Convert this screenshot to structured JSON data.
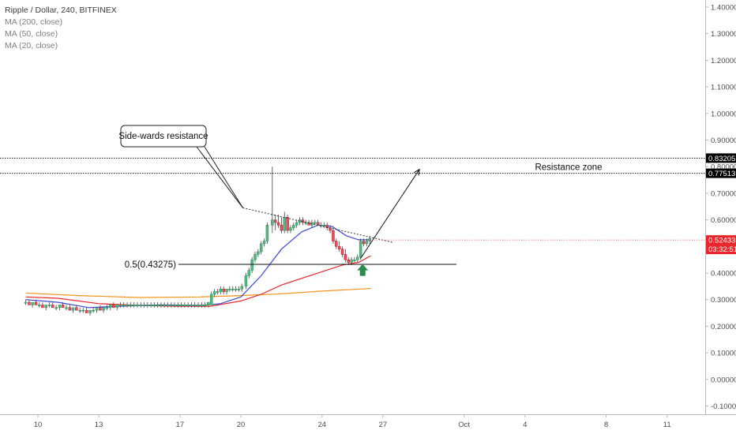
{
  "legend": {
    "symbol": "Ripple / Dollar, 240, BITFINEX",
    "ma200": "MA (200, close)",
    "ma50": "MA (50, close)",
    "ma20": "MA (20, close)"
  },
  "chart_data": {
    "type": "candlestick",
    "title": "Ripple / Dollar, 240, BITFINEX",
    "y_axis": {
      "position": "right",
      "range": [
        -0.12,
        1.42
      ],
      "ticks": [
        1.4,
        1.3,
        1.2,
        1.1,
        1.0,
        0.9,
        0.8,
        0.7,
        0.6,
        0.5,
        0.4,
        0.3,
        0.2,
        0.1,
        0.0,
        -0.1
      ],
      "tick_labels": [
        "1.40000",
        "1.30000",
        "1.20000",
        "1.10000",
        "1.00000",
        "0.90000",
        "0.80000",
        "0.70000",
        "0.60000",
        "0.50000",
        "0.40000",
        "0.30000",
        "0.20000",
        "0.10000",
        "0.00000",
        "-0.10000"
      ]
    },
    "x_axis": {
      "range_days": [
        9.4,
        42.5
      ],
      "ticks": [
        {
          "day": 10,
          "label": "10"
        },
        {
          "day": 13,
          "label": "13"
        },
        {
          "day": 17,
          "label": "17"
        },
        {
          "day": 20,
          "label": "20"
        },
        {
          "day": 24,
          "label": "24"
        },
        {
          "day": 27,
          "label": "27"
        },
        {
          "day": 31,
          "label": "Oct"
        },
        {
          "day": 34,
          "label": "4"
        },
        {
          "day": 38,
          "label": "8"
        },
        {
          "day": 41,
          "label": "11"
        }
      ]
    },
    "candles": [
      [
        9.4,
        0.29,
        0.3,
        0.28,
        0.29
      ],
      [
        9.57,
        0.29,
        0.3,
        0.28,
        0.28
      ],
      [
        9.73,
        0.28,
        0.29,
        0.27,
        0.29
      ],
      [
        9.9,
        0.29,
        0.3,
        0.28,
        0.28
      ],
      [
        10.07,
        0.28,
        0.29,
        0.27,
        0.28
      ],
      [
        10.23,
        0.28,
        0.29,
        0.27,
        0.27
      ],
      [
        10.4,
        0.27,
        0.28,
        0.26,
        0.28
      ],
      [
        10.57,
        0.28,
        0.29,
        0.27,
        0.28
      ],
      [
        10.73,
        0.28,
        0.29,
        0.27,
        0.27
      ],
      [
        10.9,
        0.27,
        0.28,
        0.26,
        0.27
      ],
      [
        11.07,
        0.27,
        0.28,
        0.26,
        0.28
      ],
      [
        11.23,
        0.28,
        0.29,
        0.27,
        0.27
      ],
      [
        11.4,
        0.27,
        0.28,
        0.26,
        0.27
      ],
      [
        11.57,
        0.27,
        0.28,
        0.26,
        0.26
      ],
      [
        11.73,
        0.26,
        0.27,
        0.25,
        0.27
      ],
      [
        11.9,
        0.27,
        0.28,
        0.26,
        0.26
      ],
      [
        12.07,
        0.26,
        0.27,
        0.25,
        0.26
      ],
      [
        12.23,
        0.26,
        0.27,
        0.25,
        0.26
      ],
      [
        12.4,
        0.26,
        0.27,
        0.25,
        0.25
      ],
      [
        12.57,
        0.25,
        0.26,
        0.24,
        0.26
      ],
      [
        12.73,
        0.26,
        0.27,
        0.25,
        0.26
      ],
      [
        12.9,
        0.26,
        0.27,
        0.25,
        0.27
      ],
      [
        13.07,
        0.27,
        0.28,
        0.26,
        0.26
      ],
      [
        13.23,
        0.26,
        0.27,
        0.25,
        0.27
      ],
      [
        13.4,
        0.27,
        0.28,
        0.26,
        0.27
      ],
      [
        13.57,
        0.27,
        0.28,
        0.26,
        0.28
      ],
      [
        13.73,
        0.28,
        0.29,
        0.27,
        0.27
      ],
      [
        13.9,
        0.27,
        0.28,
        0.26,
        0.28
      ],
      [
        14.07,
        0.28,
        0.29,
        0.27,
        0.28
      ],
      [
        14.23,
        0.28,
        0.29,
        0.27,
        0.28
      ],
      [
        14.4,
        0.28,
        0.29,
        0.27,
        0.28
      ],
      [
        14.57,
        0.28,
        0.29,
        0.27,
        0.28
      ],
      [
        14.73,
        0.28,
        0.29,
        0.27,
        0.28
      ],
      [
        14.9,
        0.28,
        0.29,
        0.27,
        0.28
      ],
      [
        15.07,
        0.28,
        0.29,
        0.27,
        0.28
      ],
      [
        15.23,
        0.28,
        0.29,
        0.27,
        0.28
      ],
      [
        15.4,
        0.28,
        0.29,
        0.27,
        0.28
      ],
      [
        15.57,
        0.28,
        0.29,
        0.27,
        0.28
      ],
      [
        15.73,
        0.28,
        0.29,
        0.27,
        0.28
      ],
      [
        15.9,
        0.28,
        0.29,
        0.27,
        0.28
      ],
      [
        16.07,
        0.28,
        0.29,
        0.27,
        0.28
      ],
      [
        16.23,
        0.28,
        0.29,
        0.27,
        0.28
      ],
      [
        16.4,
        0.28,
        0.29,
        0.27,
        0.28
      ],
      [
        16.57,
        0.28,
        0.29,
        0.27,
        0.28
      ],
      [
        16.73,
        0.28,
        0.29,
        0.27,
        0.28
      ],
      [
        16.9,
        0.28,
        0.29,
        0.27,
        0.28
      ],
      [
        17.07,
        0.28,
        0.29,
        0.27,
        0.28
      ],
      [
        17.23,
        0.28,
        0.29,
        0.27,
        0.28
      ],
      [
        17.4,
        0.28,
        0.29,
        0.27,
        0.28
      ],
      [
        17.57,
        0.28,
        0.29,
        0.27,
        0.28
      ],
      [
        17.73,
        0.28,
        0.29,
        0.27,
        0.28
      ],
      [
        17.9,
        0.28,
        0.29,
        0.27,
        0.28
      ],
      [
        18.07,
        0.28,
        0.29,
        0.27,
        0.28
      ],
      [
        18.23,
        0.28,
        0.29,
        0.27,
        0.28
      ],
      [
        18.4,
        0.28,
        0.29,
        0.27,
        0.29
      ],
      [
        18.55,
        0.28,
        0.33,
        0.28,
        0.32
      ],
      [
        18.7,
        0.32,
        0.34,
        0.31,
        0.33
      ],
      [
        18.85,
        0.33,
        0.34,
        0.32,
        0.33
      ],
      [
        19.0,
        0.33,
        0.35,
        0.32,
        0.34
      ],
      [
        19.15,
        0.34,
        0.35,
        0.32,
        0.33
      ],
      [
        19.3,
        0.33,
        0.34,
        0.32,
        0.34
      ],
      [
        19.45,
        0.34,
        0.35,
        0.33,
        0.34
      ],
      [
        19.6,
        0.34,
        0.35,
        0.33,
        0.34
      ],
      [
        19.75,
        0.34,
        0.35,
        0.33,
        0.34
      ],
      [
        19.9,
        0.34,
        0.35,
        0.33,
        0.34
      ],
      [
        20.05,
        0.34,
        0.36,
        0.33,
        0.35
      ],
      [
        20.25,
        0.35,
        0.4,
        0.34,
        0.39
      ],
      [
        20.4,
        0.39,
        0.42,
        0.38,
        0.41
      ],
      [
        20.55,
        0.41,
        0.46,
        0.4,
        0.45
      ],
      [
        20.7,
        0.45,
        0.48,
        0.44,
        0.47
      ],
      [
        20.85,
        0.47,
        0.49,
        0.46,
        0.48
      ],
      [
        21.0,
        0.48,
        0.52,
        0.47,
        0.51
      ],
      [
        21.15,
        0.51,
        0.53,
        0.5,
        0.52
      ],
      [
        21.3,
        0.52,
        0.59,
        0.51,
        0.58
      ],
      [
        21.55,
        0.58,
        0.8,
        0.55,
        0.6
      ],
      [
        21.7,
        0.6,
        0.62,
        0.56,
        0.59
      ],
      [
        21.85,
        0.59,
        0.62,
        0.57,
        0.58
      ],
      [
        22.0,
        0.58,
        0.61,
        0.55,
        0.56
      ],
      [
        22.15,
        0.56,
        0.63,
        0.55,
        0.61
      ],
      [
        22.3,
        0.61,
        0.62,
        0.55,
        0.56
      ],
      [
        22.45,
        0.56,
        0.58,
        0.55,
        0.57
      ],
      [
        22.6,
        0.57,
        0.59,
        0.56,
        0.58
      ],
      [
        22.75,
        0.58,
        0.6,
        0.57,
        0.59
      ],
      [
        22.9,
        0.59,
        0.61,
        0.58,
        0.6
      ],
      [
        23.05,
        0.6,
        0.61,
        0.58,
        0.59
      ],
      [
        23.2,
        0.59,
        0.6,
        0.58,
        0.59
      ],
      [
        23.35,
        0.59,
        0.6,
        0.58,
        0.58
      ],
      [
        23.5,
        0.58,
        0.6,
        0.57,
        0.59
      ],
      [
        23.65,
        0.59,
        0.6,
        0.58,
        0.59
      ],
      [
        23.8,
        0.59,
        0.6,
        0.58,
        0.58
      ],
      [
        23.95,
        0.58,
        0.59,
        0.57,
        0.58
      ],
      [
        24.1,
        0.58,
        0.59,
        0.57,
        0.58
      ],
      [
        24.25,
        0.58,
        0.59,
        0.56,
        0.57
      ],
      [
        24.4,
        0.57,
        0.58,
        0.55,
        0.56
      ],
      [
        24.55,
        0.56,
        0.57,
        0.51,
        0.52
      ],
      [
        24.7,
        0.52,
        0.53,
        0.49,
        0.5
      ],
      [
        24.85,
        0.5,
        0.52,
        0.48,
        0.49
      ],
      [
        25.0,
        0.49,
        0.5,
        0.46,
        0.47
      ],
      [
        25.15,
        0.47,
        0.49,
        0.44,
        0.45
      ],
      [
        25.3,
        0.45,
        0.46,
        0.43,
        0.44
      ],
      [
        25.45,
        0.44,
        0.46,
        0.43,
        0.45
      ],
      [
        25.6,
        0.45,
        0.46,
        0.44,
        0.45
      ],
      [
        25.75,
        0.45,
        0.47,
        0.44,
        0.46
      ],
      [
        25.9,
        0.46,
        0.53,
        0.45,
        0.52
      ],
      [
        26.05,
        0.52,
        0.53,
        0.5,
        0.51
      ],
      [
        26.2,
        0.51,
        0.53,
        0.5,
        0.52
      ],
      [
        26.35,
        0.52,
        0.54,
        0.51,
        0.53
      ]
    ],
    "moving_averages": [
      {
        "name": "MA (200, close)",
        "color": "#f7931a",
        "points": [
          [
            9.4,
            0.325
          ],
          [
            12,
            0.315
          ],
          [
            15,
            0.308
          ],
          [
            18,
            0.31
          ],
          [
            20,
            0.315
          ],
          [
            22,
            0.322
          ],
          [
            24,
            0.332
          ],
          [
            26,
            0.34
          ],
          [
            26.4,
            0.342
          ]
        ]
      },
      {
        "name": "MA (50, close)",
        "color": "#e8262b",
        "points": [
          [
            9.4,
            0.31
          ],
          [
            11,
            0.305
          ],
          [
            13,
            0.285
          ],
          [
            15,
            0.278
          ],
          [
            17,
            0.275
          ],
          [
            18.5,
            0.275
          ],
          [
            20,
            0.295
          ],
          [
            21,
            0.32
          ],
          [
            22,
            0.355
          ],
          [
            23,
            0.38
          ],
          [
            24,
            0.405
          ],
          [
            25,
            0.43
          ],
          [
            25.8,
            0.44
          ],
          [
            26.4,
            0.465
          ]
        ]
      },
      {
        "name": "MA (20, close)",
        "color": "#3b4ad6",
        "points": [
          [
            9.4,
            0.3
          ],
          [
            11,
            0.29
          ],
          [
            12.5,
            0.27
          ],
          [
            14,
            0.275
          ],
          [
            16,
            0.28
          ],
          [
            18,
            0.278
          ],
          [
            19,
            0.285
          ],
          [
            20,
            0.31
          ],
          [
            21,
            0.39
          ],
          [
            22,
            0.49
          ],
          [
            23,
            0.555
          ],
          [
            23.8,
            0.58
          ],
          [
            24.5,
            0.575
          ],
          [
            25.2,
            0.54
          ],
          [
            25.8,
            0.525
          ],
          [
            26.4,
            0.525
          ]
        ]
      }
    ],
    "levels": [
      {
        "value": 0.83205,
        "label": "0.83205",
        "style": "dotted"
      },
      {
        "value": 0.77513,
        "label": "0.77513",
        "style": "dotted"
      }
    ],
    "current_price": {
      "value": 0.52433,
      "label": "0.52433",
      "countdown": "03:32:51",
      "color": "#e8262b"
    },
    "annotations": {
      "fib_label": "0.5(0.43275)",
      "fib_value": 0.43275,
      "resistance_callout": "Side-wards resistance",
      "resistance_zone_label": "Resistance zone",
      "trendline": [
        [
          20.1,
          0.645
        ],
        [
          27.5,
          0.515
        ]
      ],
      "projection_arrow": [
        [
          25.9,
          0.455
        ],
        [
          28.8,
          0.79
        ]
      ],
      "up_arrow_at": [
        26.0,
        0.41
      ]
    },
    "grid": false
  }
}
